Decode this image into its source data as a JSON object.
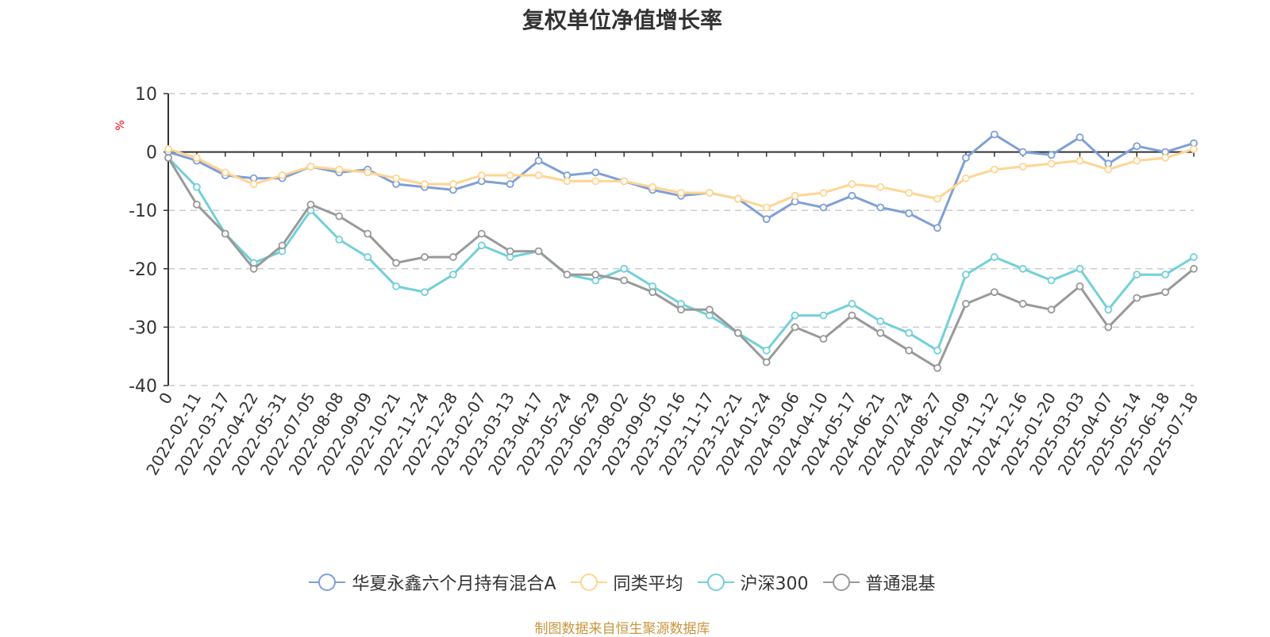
{
  "chart_data": {
    "type": "line",
    "title": "复权单位净值增长率",
    "ylabel": "%",
    "ylim": [
      -40,
      10
    ],
    "yticks": [
      10,
      0,
      -10,
      -20,
      -30,
      -40
    ],
    "grid": true,
    "legend_position": "bottom",
    "source_note": "制图数据来自恒生聚源数据库",
    "x": [
      "0",
      "2022-02-11",
      "2022-03-17",
      "2022-04-22",
      "2022-05-31",
      "2022-07-05",
      "2022-08-08",
      "2022-09-09",
      "2022-10-21",
      "2022-11-24",
      "2022-12-28",
      "2023-02-07",
      "2023-03-13",
      "2023-04-17",
      "2023-05-24",
      "2023-06-29",
      "2023-08-02",
      "2023-09-05",
      "2023-10-16",
      "2023-11-17",
      "2023-12-21",
      "2024-01-24",
      "2024-03-06",
      "2024-04-10",
      "2024-05-17",
      "2024-06-21",
      "2024-07-24",
      "2024-08-27",
      "2024-10-09",
      "2024-11-12",
      "2024-12-16",
      "2025-01-20",
      "2025-03-03",
      "2025-04-07",
      "2025-05-14",
      "2025-06-18",
      "2025-07-18"
    ],
    "series": [
      {
        "name": "华夏永鑫六个月持有混合A",
        "color": "#7f9fd6",
        "values": [
          0,
          -1.5,
          -4,
          -4.5,
          -4.5,
          -2.5,
          -3.5,
          -3,
          -5.5,
          -6,
          -6.5,
          -5,
          -5.5,
          -1.5,
          -4,
          -3.5,
          -5,
          -6.5,
          -7.5,
          -7,
          -8,
          -11.5,
          -8.5,
          -9.5,
          -7.5,
          -9.5,
          -10.5,
          -13,
          -1,
          3,
          0,
          -0.5,
          2.5,
          -2,
          1,
          0,
          1.5
        ]
      },
      {
        "name": "同类平均",
        "color": "#ffd591",
        "values": [
          0.5,
          -1,
          -3.5,
          -5.5,
          -4,
          -2.5,
          -3,
          -3.5,
          -4.5,
          -5.5,
          -5.5,
          -4,
          -4,
          -4,
          -5,
          -5,
          -5,
          -6,
          -7,
          -7,
          -8,
          -9.5,
          -7.5,
          -7,
          -5.5,
          -6,
          -7,
          -8,
          -4.5,
          -3,
          -2.5,
          -2,
          -1.5,
          -3,
          -1.5,
          -1,
          0.5
        ]
      },
      {
        "name": "沪深300",
        "color": "#73d0d8",
        "values": [
          -1,
          -6,
          -14,
          -19,
          -17,
          -10,
          -15,
          -18,
          -23,
          -24,
          -21,
          -16,
          -18,
          -17,
          -21,
          -22,
          -20,
          -23,
          -26,
          -28,
          -31,
          -34,
          -28,
          -28,
          -26,
          -29,
          -31,
          -34,
          -21,
          -18,
          -20,
          -22,
          -20,
          -27,
          -21,
          -21,
          -18
        ]
      },
      {
        "name": "普通混基",
        "color": "#999999",
        "values": [
          -1,
          -9,
          -14,
          -20,
          -16,
          -9,
          -11,
          -14,
          -19,
          -18,
          -18,
          -14,
          -17,
          -17,
          -21,
          -21,
          -22,
          -24,
          -27,
          -27,
          -31,
          -36,
          -30,
          -32,
          -28,
          -31,
          -34,
          -37,
          -26,
          -24,
          -26,
          -27,
          -23,
          -30,
          -25,
          -24,
          -20
        ]
      }
    ]
  }
}
